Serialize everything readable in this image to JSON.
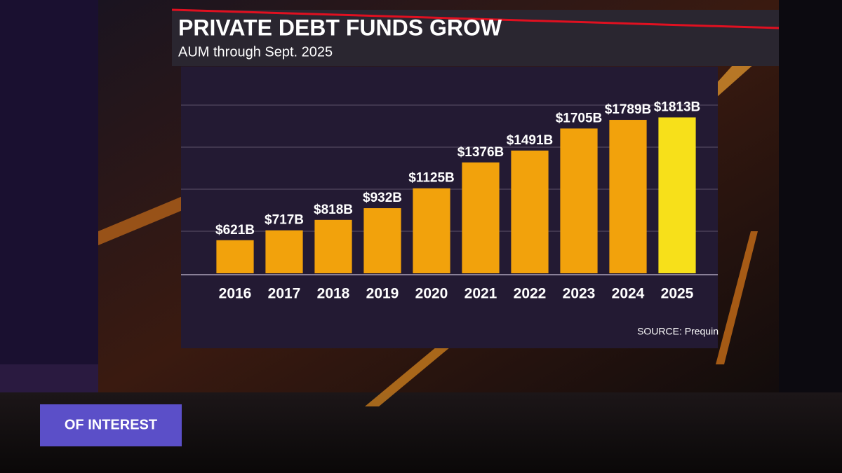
{
  "chart_data": {
    "type": "bar",
    "title": "PRIVATE DEBT FUNDS GROW",
    "subtitle": "AUM through Sept. 2025",
    "source": "SOURCE: Prequin",
    "categories": [
      "2016",
      "2017",
      "2018",
      "2019",
      "2020",
      "2021",
      "2022",
      "2023",
      "2024",
      "2025"
    ],
    "values": [
      621,
      717,
      818,
      932,
      1125,
      1376,
      1491,
      1705,
      1789,
      1813
    ],
    "value_labels": [
      "$621B",
      "$717B",
      "$818B",
      "$932B",
      "$1125B",
      "$1376B",
      "$1491B",
      "$1705B",
      "$1789B",
      "$1813B"
    ],
    "colors": [
      "#f2a20c",
      "#f2a20c",
      "#f2a20c",
      "#f2a20c",
      "#f2a20c",
      "#f2a20c",
      "#f2a20c",
      "#f2a20c",
      "#f2a20c",
      "#f7e01a"
    ],
    "ylim": [
      300,
      2000
    ]
  },
  "banner": "OF INTEREST"
}
